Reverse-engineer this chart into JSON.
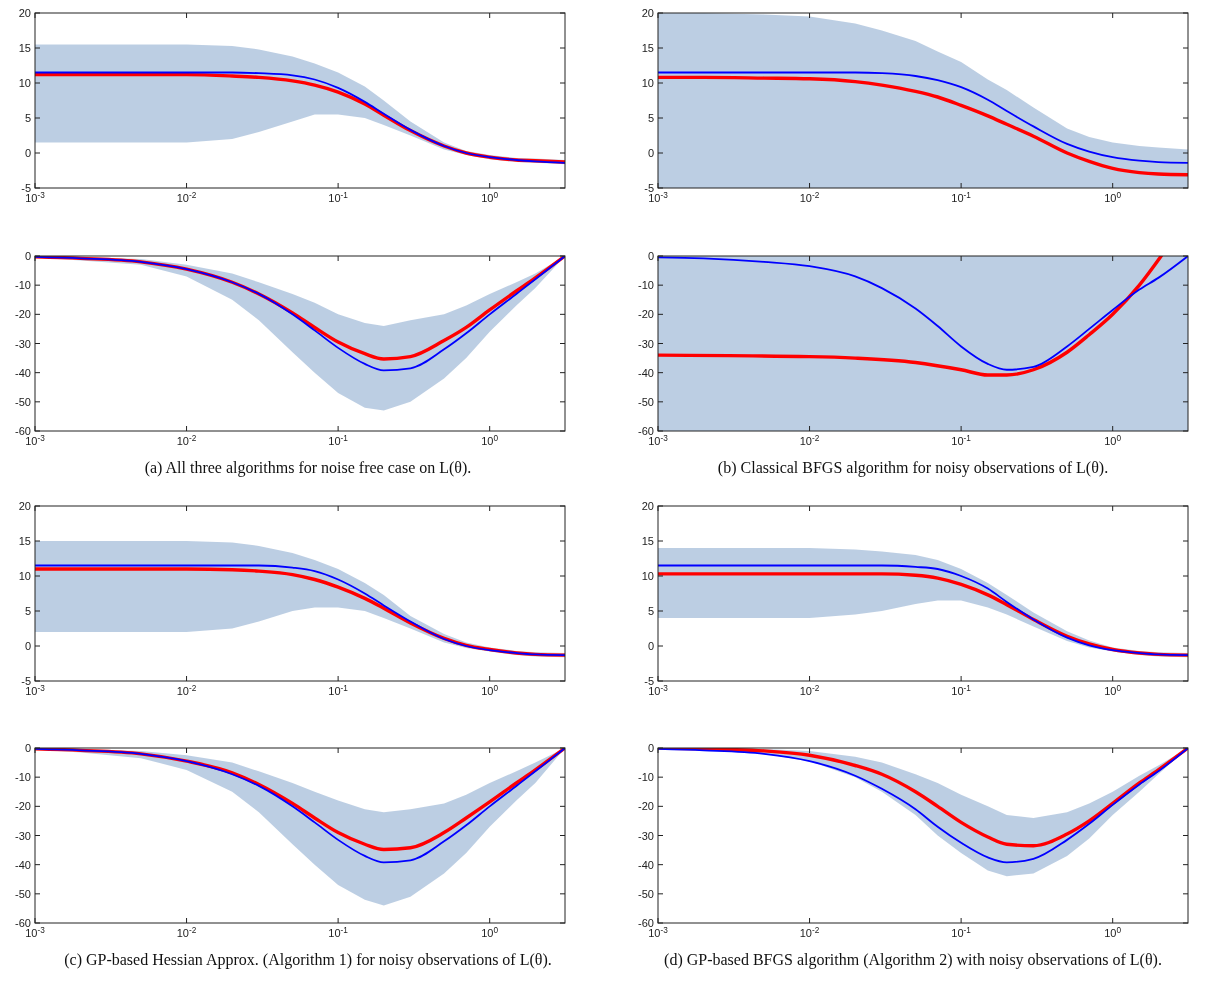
{
  "chart_data": [
    {
      "type": "line",
      "x": [
        0.001,
        0.002,
        0.005,
        0.01,
        0.02,
        0.03,
        0.05,
        0.07,
        0.1,
        0.15,
        0.2,
        0.3,
        0.5,
        0.7,
        1,
        1.5,
        2,
        3.14
      ],
      "log": "x",
      "xlim": [
        0.001,
        3.14
      ],
      "xticks": [
        {
          "value": 0.001,
          "label": "10$^{-3}$"
        },
        {
          "value": 0.01,
          "label": "10$^{-2}$"
        },
        {
          "value": 0.1,
          "label": "10$^{-1}$"
        },
        {
          "value": 1,
          "label": "10$^{0}$"
        }
      ],
      "ylim": [
        -5,
        20
      ],
      "yticks": [
        -5,
        0,
        5,
        10,
        15,
        20
      ],
      "grid": false,
      "legend": false,
      "series": [
        {
          "color": "#ff0000",
          "values": [
            11.2,
            11.2,
            11.2,
            11.2,
            11.0,
            10.8,
            10.3,
            9.7,
            8.7,
            7.0,
            5.4,
            3.2,
            1.0,
            0,
            -0.6,
            -1.0,
            -1.1,
            -1.3
          ],
          "lower": [
            1.5,
            1.5,
            1.5,
            1.5,
            2,
            3,
            4.5,
            5.5,
            5.5,
            5,
            4,
            2.5,
            0.5,
            -0.3,
            -0.9,
            -1.3,
            -1.4,
            -1.6
          ],
          "upper": [
            15.5,
            15.5,
            15.5,
            15.5,
            15.3,
            14.8,
            13.8,
            12.8,
            11.5,
            9.5,
            7.5,
            4.5,
            1.5,
            0.3,
            -0.3,
            -0.7,
            -0.8,
            -1.0
          ]
        },
        {
          "color": "#0000ff",
          "values": [
            11.5,
            11.5,
            11.5,
            11.5,
            11.5,
            11.4,
            11.1,
            10.5,
            9.3,
            7.3,
            5.6,
            3.3,
            1.0,
            0,
            -0.6,
            -1.0,
            -1.2,
            -1.4
          ]
        }
      ]
    },
    {
      "type": "line",
      "x": [
        0.001,
        0.002,
        0.005,
        0.01,
        0.02,
        0.03,
        0.05,
        0.07,
        0.1,
        0.15,
        0.2,
        0.3,
        0.5,
        0.7,
        1,
        1.5,
        2,
        3.14
      ],
      "log": "x",
      "xlim": [
        0.001,
        3.14
      ],
      "xticks": [
        {
          "value": 0.001,
          "label": "10$^{-3}$"
        },
        {
          "value": 0.01,
          "label": "10$^{-2}$"
        },
        {
          "value": 0.1,
          "label": "10$^{-1}$"
        },
        {
          "value": 1,
          "label": "10$^{0}$"
        }
      ],
      "ylim": [
        -5,
        20
      ],
      "yticks": [
        -5,
        0,
        5,
        10,
        15,
        20
      ],
      "grid": false,
      "legend": false,
      "series": [
        {
          "color": "#ff0000",
          "values": [
            10.8,
            10.8,
            10.7,
            10.6,
            10.2,
            9.7,
            8.8,
            8,
            6.8,
            5.3,
            4.1,
            2.4,
            0,
            -1.2,
            -2.2,
            -2.8,
            -3,
            -3.1
          ],
          "lower": [
            -5,
            -5,
            -5,
            -5,
            -5,
            -5,
            -5,
            -5,
            -5,
            -5,
            -5,
            -5,
            -5,
            -5,
            -5,
            -5,
            -5,
            -5
          ],
          "upper": [
            20,
            20,
            19.8,
            19.5,
            18.5,
            17.5,
            16,
            14.5,
            13,
            10.5,
            9,
            6.5,
            3.5,
            2.3,
            1.5,
            1,
            0.8,
            0.5
          ]
        },
        {
          "color": "#0000ff",
          "values": [
            11.5,
            11.5,
            11.5,
            11.5,
            11.5,
            11.4,
            11.0,
            10.4,
            9.4,
            7.6,
            6,
            3.8,
            1.3,
            0.2,
            -0.6,
            -1.1,
            -1.3,
            -1.4
          ]
        }
      ]
    },
    {
      "type": "line",
      "x": [
        0.001,
        0.002,
        0.005,
        0.01,
        0.02,
        0.03,
        0.05,
        0.07,
        0.1,
        0.15,
        0.2,
        0.3,
        0.5,
        0.7,
        1,
        1.5,
        2,
        3.14
      ],
      "log": "x",
      "xlim": [
        0.001,
        3.14
      ],
      "xticks": [
        {
          "value": 0.001,
          "label": "10$^{-3}$"
        },
        {
          "value": 0.01,
          "label": "10$^{-2}$"
        },
        {
          "value": 0.1,
          "label": "10$^{-1}$"
        },
        {
          "value": 1,
          "label": "10$^{0}$"
        }
      ],
      "ylim": [
        -60,
        0
      ],
      "yticks": [
        -60,
        -50,
        -40,
        -30,
        -20,
        -10,
        0
      ],
      "grid": false,
      "legend": false,
      "annotations": [
        "(a) All three algorithms for noise free case on L(θ)."
      ],
      "series": [
        {
          "color": "#ff0000",
          "values": [
            -0.3,
            -0.8,
            -2,
            -4.5,
            -9,
            -13,
            -19.5,
            -24.5,
            -29.5,
            -33.5,
            -35.3,
            -34.5,
            -29,
            -24.5,
            -18.5,
            -12,
            -7.5,
            0
          ],
          "lower": [
            -0.5,
            -1.5,
            -3,
            -7,
            -15,
            -22,
            -33,
            -40,
            -47,
            -52,
            -53,
            -50,
            -42,
            -35,
            -26,
            -17,
            -11,
            0
          ],
          "upper": [
            0,
            -0.3,
            -1,
            -3,
            -6,
            -9,
            -13,
            -16,
            -20,
            -23,
            -24,
            -22,
            -20,
            -17,
            -13,
            -9,
            -6,
            0
          ]
        },
        {
          "color": "#0000ff",
          "values": [
            -0.3,
            -0.8,
            -2,
            -4.5,
            -9,
            -13,
            -20,
            -25.5,
            -31.5,
            -37,
            -39.2,
            -38.5,
            -32,
            -26.5,
            -20,
            -13,
            -8,
            0
          ]
        }
      ]
    },
    {
      "type": "line",
      "x": [
        0.001,
        0.002,
        0.005,
        0.01,
        0.02,
        0.03,
        0.05,
        0.07,
        0.1,
        0.15,
        0.2,
        0.3,
        0.5,
        0.7,
        1,
        1.5,
        2,
        3.14
      ],
      "log": "x",
      "xlim": [
        0.001,
        3.14
      ],
      "xticks": [
        {
          "value": 0.001,
          "label": "10$^{-3}$"
        },
        {
          "value": 0.01,
          "label": "10$^{-2}$"
        },
        {
          "value": 0.1,
          "label": "10$^{-1}$"
        },
        {
          "value": 1,
          "label": "10$^{0}$"
        }
      ],
      "ylim": [
        -60,
        0
      ],
      "yticks": [
        -60,
        -50,
        -40,
        -30,
        -20,
        -10,
        0
      ],
      "grid": false,
      "legend": false,
      "annotations": [
        "(b) Classical BFGS algorithm for noisy observations of L(θ)."
      ],
      "series": [
        {
          "color": "#ff0000",
          "x": [
            0.001,
            0.01,
            0.02,
            0.05,
            0.1,
            0.15,
            0.2,
            0.3,
            0.5,
            0.7,
            1,
            1.5,
            2.09
          ],
          "values": [
            -34,
            -34.5,
            -35,
            -36.5,
            -39,
            -40.8,
            -40.8,
            -39,
            -33,
            -27,
            -20,
            -10,
            0
          ]
        },
        {
          "color": "#0000ff",
          "values": [
            -0.5,
            -0.8,
            -2,
            -3.5,
            -7,
            -11,
            -18,
            -24,
            -31,
            -37,
            -39,
            -38,
            -31,
            -25,
            -18.5,
            -11.5,
            -7.5,
            0
          ]
        }
      ],
      "bands": [
        {
          "axis": "y",
          "from": -60,
          "to": 0,
          "color": "#3f72b0"
        }
      ]
    },
    {
      "type": "line",
      "x": [
        0.001,
        0.002,
        0.005,
        0.01,
        0.02,
        0.03,
        0.05,
        0.07,
        0.1,
        0.15,
        0.2,
        0.3,
        0.5,
        0.7,
        1,
        1.5,
        2,
        3.14
      ],
      "log": "x",
      "xlim": [
        0.001,
        3.14
      ],
      "xticks": [
        {
          "value": 0.001,
          "label": "10$^{-3}$"
        },
        {
          "value": 0.01,
          "label": "10$^{-2}$"
        },
        {
          "value": 0.1,
          "label": "10$^{-1}$"
        },
        {
          "value": 1,
          "label": "10$^{0}$"
        }
      ],
      "ylim": [
        -5,
        20
      ],
      "yticks": [
        -5,
        0,
        5,
        10,
        15,
        20
      ],
      "grid": false,
      "legend": false,
      "series": [
        {
          "color": "#ff0000",
          "values": [
            11.0,
            11.0,
            11.0,
            11.0,
            10.9,
            10.7,
            10.2,
            9.5,
            8.4,
            6.8,
            5.4,
            3.3,
            1.1,
            0.1,
            -0.5,
            -1,
            -1.2,
            -1.3
          ],
          "lower": [
            2,
            2,
            2,
            2,
            2.5,
            3.5,
            5,
            5.5,
            5.5,
            5,
            4,
            2.5,
            0.5,
            -0.3,
            -0.8,
            -1.3,
            -1.5,
            -1.6
          ],
          "upper": [
            15,
            15,
            15,
            15,
            14.8,
            14.3,
            13.3,
            12.3,
            11,
            9,
            7.3,
            4.3,
            1.7,
            0.5,
            -0.2,
            -0.7,
            -0.9,
            -1.0
          ]
        },
        {
          "color": "#0000ff",
          "values": [
            11.5,
            11.5,
            11.5,
            11.5,
            11.5,
            11.5,
            11.2,
            10.7,
            9.5,
            7.5,
            5.8,
            3.5,
            1.0,
            0,
            -0.6,
            -1.0,
            -1.2,
            -1.3
          ]
        }
      ]
    },
    {
      "type": "line",
      "x": [
        0.001,
        0.002,
        0.005,
        0.01,
        0.02,
        0.03,
        0.05,
        0.07,
        0.1,
        0.15,
        0.2,
        0.3,
        0.5,
        0.7,
        1,
        1.5,
        2,
        3.14
      ],
      "log": "x",
      "xlim": [
        0.001,
        3.14
      ],
      "xticks": [
        {
          "value": 0.001,
          "label": "10$^{-3}$"
        },
        {
          "value": 0.01,
          "label": "10$^{-2}$"
        },
        {
          "value": 0.1,
          "label": "10$^{-1}$"
        },
        {
          "value": 1,
          "label": "10$^{0}$"
        }
      ],
      "ylim": [
        -5,
        20
      ],
      "yticks": [
        -5,
        0,
        5,
        10,
        15,
        20
      ],
      "grid": false,
      "legend": false,
      "series": [
        {
          "color": "#ff0000",
          "values": [
            10.3,
            10.3,
            10.3,
            10.3,
            10.3,
            10.3,
            10.1,
            9.7,
            8.8,
            7.3,
            5.9,
            3.8,
            1.4,
            0.3,
            -0.5,
            -1,
            -1.2,
            -1.3
          ],
          "lower": [
            4,
            4,
            4,
            4,
            4.5,
            5,
            6,
            6.5,
            6.5,
            5.5,
            4.5,
            2.8,
            0.7,
            -0.2,
            -0.8,
            -1.3,
            -1.5,
            -1.6
          ],
          "upper": [
            14,
            14,
            14,
            14,
            13.8,
            13.5,
            13,
            12.3,
            11,
            9,
            7.3,
            4.8,
            2.1,
            0.8,
            -0.2,
            -0.7,
            -0.9,
            -1.0
          ]
        },
        {
          "color": "#0000ff",
          "values": [
            11.5,
            11.5,
            11.5,
            11.5,
            11.5,
            11.5,
            11.3,
            11,
            10,
            8.2,
            6.3,
            3.8,
            1.2,
            0.1,
            -0.6,
            -1.0,
            -1.2,
            -1.3
          ]
        }
      ]
    },
    {
      "type": "line",
      "x": [
        0.001,
        0.002,
        0.005,
        0.01,
        0.02,
        0.03,
        0.05,
        0.07,
        0.1,
        0.15,
        0.2,
        0.3,
        0.5,
        0.7,
        1,
        1.5,
        2,
        3.14
      ],
      "log": "x",
      "xlim": [
        0.001,
        3.14
      ],
      "xticks": [
        {
          "value": 0.001,
          "label": "10$^{-3}$"
        },
        {
          "value": 0.01,
          "label": "10$^{-2}$"
        },
        {
          "value": 0.1,
          "label": "10$^{-1}$"
        },
        {
          "value": 1,
          "label": "10$^{0}$"
        }
      ],
      "ylim": [
        -60,
        0
      ],
      "yticks": [
        -60,
        -50,
        -40,
        -30,
        -20,
        -10,
        0
      ],
      "grid": false,
      "legend": false,
      "annotations": [
        "(c) GP-based Hessian Approx. (Algorithm 1) for noisy observations of L(θ)."
      ],
      "series": [
        {
          "color": "#ff0000",
          "values": [
            -0.3,
            -0.8,
            -2,
            -4.5,
            -8.5,
            -12.5,
            -19,
            -24,
            -29,
            -33,
            -34.8,
            -34.2,
            -29,
            -24,
            -18.5,
            -12,
            -7.5,
            0
          ],
          "lower": [
            -0.5,
            -1.5,
            -3.5,
            -7.5,
            -15,
            -22,
            -33,
            -40,
            -47,
            -52,
            -54,
            -51,
            -43,
            -36,
            -27,
            -18,
            -12,
            0
          ],
          "upper": [
            0,
            -0.3,
            -1,
            -2.5,
            -5,
            -8,
            -12,
            -15,
            -18,
            -21,
            -22,
            -21,
            -19,
            -16,
            -12,
            -8,
            -5,
            0
          ]
        },
        {
          "color": "#0000ff",
          "values": [
            -0.3,
            -0.8,
            -2,
            -4.5,
            -9,
            -13,
            -20,
            -25.5,
            -31.5,
            -37,
            -39.2,
            -38.5,
            -32,
            -26.5,
            -20,
            -13,
            -8,
            0
          ]
        }
      ]
    },
    {
      "type": "line",
      "x": [
        0.001,
        0.002,
        0.005,
        0.01,
        0.02,
        0.03,
        0.05,
        0.07,
        0.1,
        0.15,
        0.2,
        0.3,
        0.5,
        0.7,
        1,
        1.5,
        2,
        3.14
      ],
      "log": "x",
      "xlim": [
        0.001,
        3.14
      ],
      "xticks": [
        {
          "value": 0.001,
          "label": "10$^{-3}$"
        },
        {
          "value": 0.01,
          "label": "10$^{-2}$"
        },
        {
          "value": 0.1,
          "label": "10$^{-1}$"
        },
        {
          "value": 1,
          "label": "10$^{0}$"
        }
      ],
      "ylim": [
        -60,
        0
      ],
      "yticks": [
        -60,
        -50,
        -40,
        -30,
        -20,
        -10,
        0
      ],
      "grid": false,
      "legend": false,
      "annotations": [
        "(d) GP-based BFGS algorithm (Algorithm 2) with noisy observations of L(θ)."
      ],
      "series": [
        {
          "color": "#ff0000",
          "values": [
            0,
            -0.3,
            -1,
            -2.5,
            -6,
            -9,
            -15,
            -20,
            -25.5,
            -30.5,
            -33,
            -33.5,
            -29.5,
            -25,
            -19,
            -12,
            -7.5,
            0
          ],
          "lower": [
            0,
            -0.5,
            -2,
            -4.5,
            -10,
            -15,
            -23,
            -30,
            -36,
            -42,
            -44,
            -43,
            -37,
            -31,
            -23,
            -15,
            -9,
            0
          ],
          "upper": [
            0,
            0,
            -0.3,
            -1,
            -3,
            -5,
            -9,
            -12,
            -16,
            -20,
            -23,
            -24,
            -22,
            -19,
            -15,
            -9.5,
            -6,
            0
          ]
        },
        {
          "color": "#0000ff",
          "values": [
            -0.3,
            -0.8,
            -2,
            -4.5,
            -9.5,
            -14,
            -21,
            -27,
            -32.5,
            -37.5,
            -39.2,
            -38,
            -31.5,
            -26,
            -19.5,
            -12.5,
            -8,
            0
          ]
        }
      ]
    }
  ]
}
